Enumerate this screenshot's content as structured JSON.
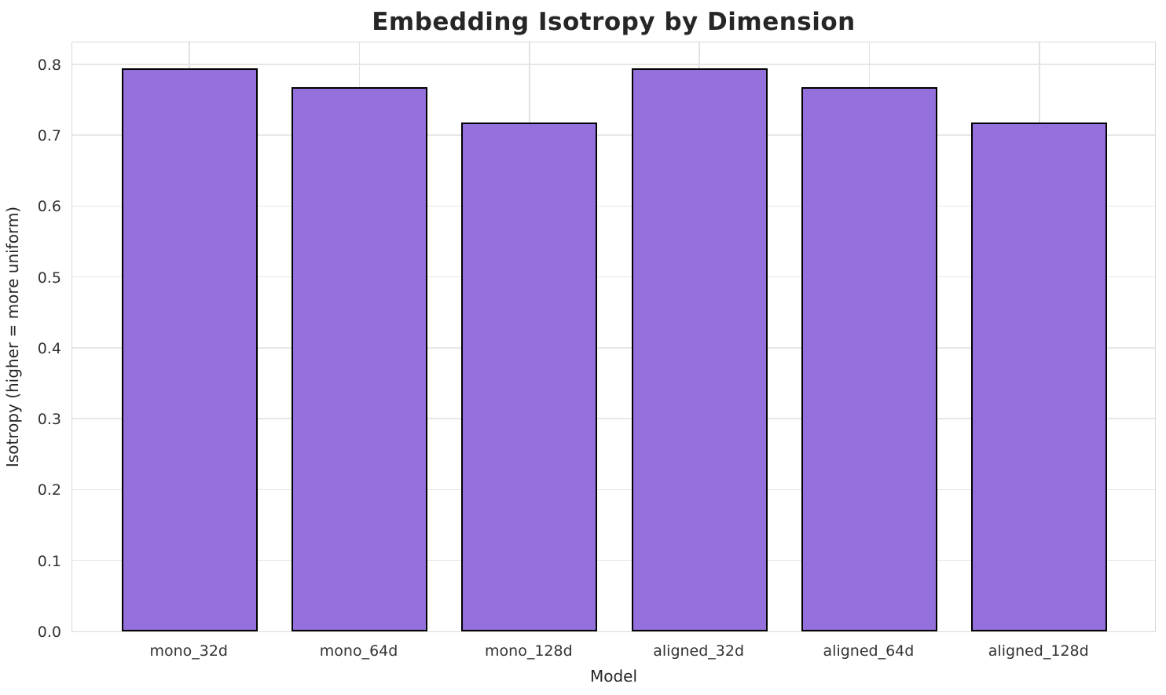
{
  "chart_data": {
    "type": "bar",
    "title": "Embedding Isotropy by Dimension",
    "xlabel": "Model",
    "ylabel": "Isotropy (higher = more uniform)",
    "categories": [
      "mono_32d",
      "mono_64d",
      "mono_128d",
      "aligned_32d",
      "aligned_64d",
      "aligned_128d"
    ],
    "values": [
      0.794,
      0.768,
      0.718,
      0.794,
      0.768,
      0.718
    ],
    "yticks": [
      0.0,
      0.1,
      0.2,
      0.3,
      0.4,
      0.5,
      0.6,
      0.7,
      0.8
    ],
    "ylim": [
      0,
      0.833
    ],
    "grid": true,
    "legend": null,
    "bar_color": "#9370DB",
    "bar_edge_color": "#000000",
    "grid_color": "#e7e7e7",
    "text_color": "#333333",
    "title_color": "#262626"
  }
}
